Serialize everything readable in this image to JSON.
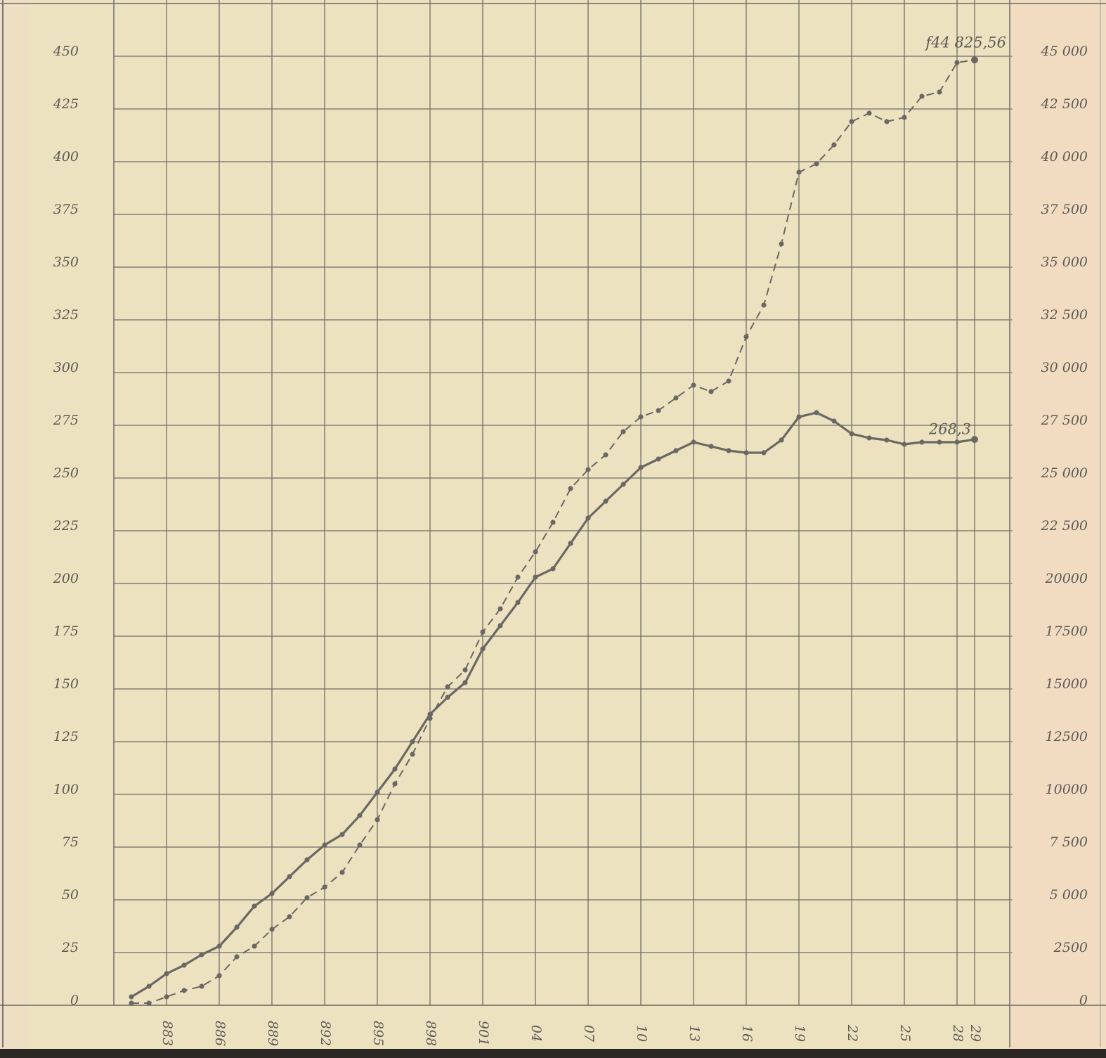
{
  "chart_data": {
    "type": "line",
    "x": [
      1881,
      1882,
      1883,
      1884,
      1885,
      1886,
      1887,
      1888,
      1889,
      1890,
      1891,
      1892,
      1893,
      1894,
      1895,
      1896,
      1897,
      1898,
      1899,
      1900,
      1901,
      1902,
      1903,
      1904,
      1905,
      1906,
      1907,
      1908,
      1909,
      1910,
      1911,
      1912,
      1913,
      1914,
      1915,
      1916,
      1917,
      1918,
      1919,
      1920,
      1921,
      1922,
      1923,
      1924,
      1925,
      1926,
      1927,
      1928,
      1929
    ],
    "series": [
      {
        "color": "#6b6763",
        "line_style": "solid",
        "values": [
          4,
          9,
          15,
          19,
          24,
          28,
          37,
          47,
          53,
          61,
          69,
          76,
          81,
          90,
          101,
          112,
          125,
          138,
          146,
          153,
          169,
          180,
          191,
          203,
          207,
          219,
          231,
          239,
          247,
          255,
          259,
          263,
          267,
          265,
          263,
          262,
          262,
          268,
          279,
          281,
          277,
          271,
          269,
          268,
          266,
          267,
          267,
          267,
          268.3
        ]
      },
      {
        "color": "#6b6763",
        "line_style": "dashed",
        "axis": "y2",
        "values": [
          100,
          100,
          400,
          700,
          900,
          1400,
          2300,
          2800,
          3600,
          4200,
          5100,
          5600,
          6300,
          7600,
          8800,
          10500,
          11900,
          13600,
          15100,
          15900,
          17700,
          18800,
          20300,
          21500,
          22900,
          24500,
          25400,
          26100,
          27200,
          27900,
          28200,
          28800,
          29400,
          29100,
          29600,
          31700,
          33200,
          36100,
          39500,
          39900,
          40800,
          41900,
          42300,
          41900,
          42100,
          43100,
          43300,
          44700,
          44825.56
        ]
      }
    ],
    "annotations": [
      {
        "text": "f44 825,56"
      },
      {
        "text": "268,3"
      }
    ],
    "xlim": [
      1880,
      1931
    ],
    "xticks": [
      {
        "value": 1883,
        "label": "883"
      },
      {
        "value": 1886,
        "label": "886"
      },
      {
        "value": 1889,
        "label": "889"
      },
      {
        "value": 1892,
        "label": "892"
      },
      {
        "value": 1895,
        "label": "895"
      },
      {
        "value": 1898,
        "label": "898"
      },
      {
        "value": 1901,
        "label": "901"
      },
      {
        "value": 1904,
        "label": "04"
      },
      {
        "value": 1907,
        "label": "07"
      },
      {
        "value": 1910,
        "label": "10"
      },
      {
        "value": 1913,
        "label": "13"
      },
      {
        "value": 1916,
        "label": "16"
      },
      {
        "value": 1919,
        "label": "19"
      },
      {
        "value": 1922,
        "label": "22"
      },
      {
        "value": 1925,
        "label": "25"
      },
      {
        "value": 1928,
        "label": "28"
      },
      {
        "value": 1929,
        "label": "29"
      }
    ],
    "ylim": [
      0,
      475
    ],
    "yticks": [
      0,
      25,
      50,
      75,
      100,
      125,
      150,
      175,
      200,
      225,
      250,
      275,
      300,
      325,
      350,
      375,
      400,
      425,
      450
    ],
    "y2lim": [
      0,
      47500
    ],
    "y2ticks": [
      0,
      2500,
      {
        "value": 5000,
        "label": "5 000"
      },
      {
        "value": 7500,
        "label": "7 500"
      },
      10000,
      12500,
      15000,
      17500,
      20000,
      {
        "value": 22500,
        "label": "22 500"
      },
      {
        "value": 25000,
        "label": "25 000"
      },
      {
        "value": 27500,
        "label": "27 500"
      },
      {
        "value": 30000,
        "label": "30 000"
      },
      {
        "value": 32500,
        "label": "32 500"
      },
      {
        "value": 35000,
        "label": "35 000"
      },
      {
        "value": 37500,
        "label": "37 500"
      },
      {
        "value": 40000,
        "label": "40 000"
      },
      {
        "value": 42500,
        "label": "42 500"
      },
      {
        "value": 45000,
        "label": "45 000"
      }
    ],
    "grid": true
  }
}
